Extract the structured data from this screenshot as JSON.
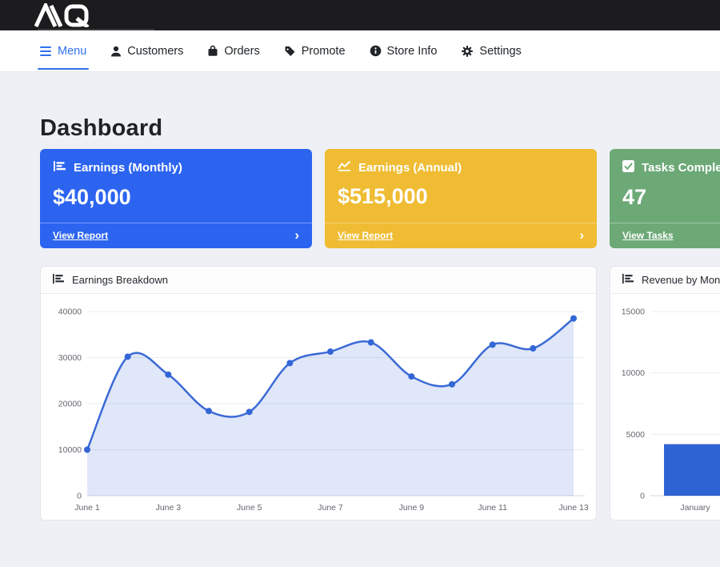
{
  "topbar": {
    "logo_text": "MQ",
    "logo_icon": "mq-logo-icon"
  },
  "nav": {
    "items": [
      {
        "label": "Menu",
        "icon": "hamburger-icon",
        "active": true,
        "color": "#2f6fed"
      },
      {
        "label": "Customers",
        "icon": "person-icon",
        "active": false
      },
      {
        "label": "Orders",
        "icon": "bag-icon",
        "active": false
      },
      {
        "label": "Promote",
        "icon": "tag-icon",
        "active": false
      },
      {
        "label": "Store Info",
        "icon": "info-icon",
        "active": false
      },
      {
        "label": "Settings",
        "icon": "gear-icon",
        "active": false
      }
    ]
  },
  "page": {
    "title": "Dashboard"
  },
  "ui": {
    "chevron_right": "›"
  },
  "stat_cards": [
    {
      "title": "Earnings (Monthly)",
      "value": "$40,000",
      "link": "View Report",
      "color": "#2c64f0",
      "icon": "bar-chart-icon"
    },
    {
      "title": "Earnings (Annual)",
      "value": "$515,000",
      "link": "View Report",
      "color": "#efbc33",
      "icon": "line-chart-icon"
    },
    {
      "title": "Tasks Completed",
      "value": "47",
      "link": "View Tasks",
      "color": "#6ca977",
      "icon": "check-square-icon"
    }
  ],
  "chart_data": [
    {
      "type": "area",
      "title": "Earnings Breakdown",
      "x": [
        "June 1",
        "June 2",
        "June 3",
        "June 4",
        "June 5",
        "June 6",
        "June 7",
        "June 8",
        "June 9",
        "June 10",
        "June 11",
        "June 12",
        "June 13"
      ],
      "values": [
        10000,
        30200,
        26300,
        18400,
        18200,
        28800,
        31300,
        33300,
        25900,
        24200,
        32800,
        32000,
        38500
      ],
      "x_tick_step": 2,
      "ylim": [
        0,
        40000
      ],
      "y_ticks": [
        0,
        10000,
        20000,
        30000,
        40000
      ],
      "grid": true,
      "line_color": "#3b6ad6",
      "point_color": "#3366d6",
      "fill_color": "#3b6ad6",
      "fill_opacity": 0.16
    },
    {
      "type": "bar",
      "title": "Revenue by Month",
      "categories": [
        "January"
      ],
      "values": [
        4200
      ],
      "ylim": [
        0,
        15000
      ],
      "y_ticks": [
        0,
        5000,
        10000,
        15000
      ],
      "grid": true,
      "bar_color": "#2e63d3"
    }
  ]
}
